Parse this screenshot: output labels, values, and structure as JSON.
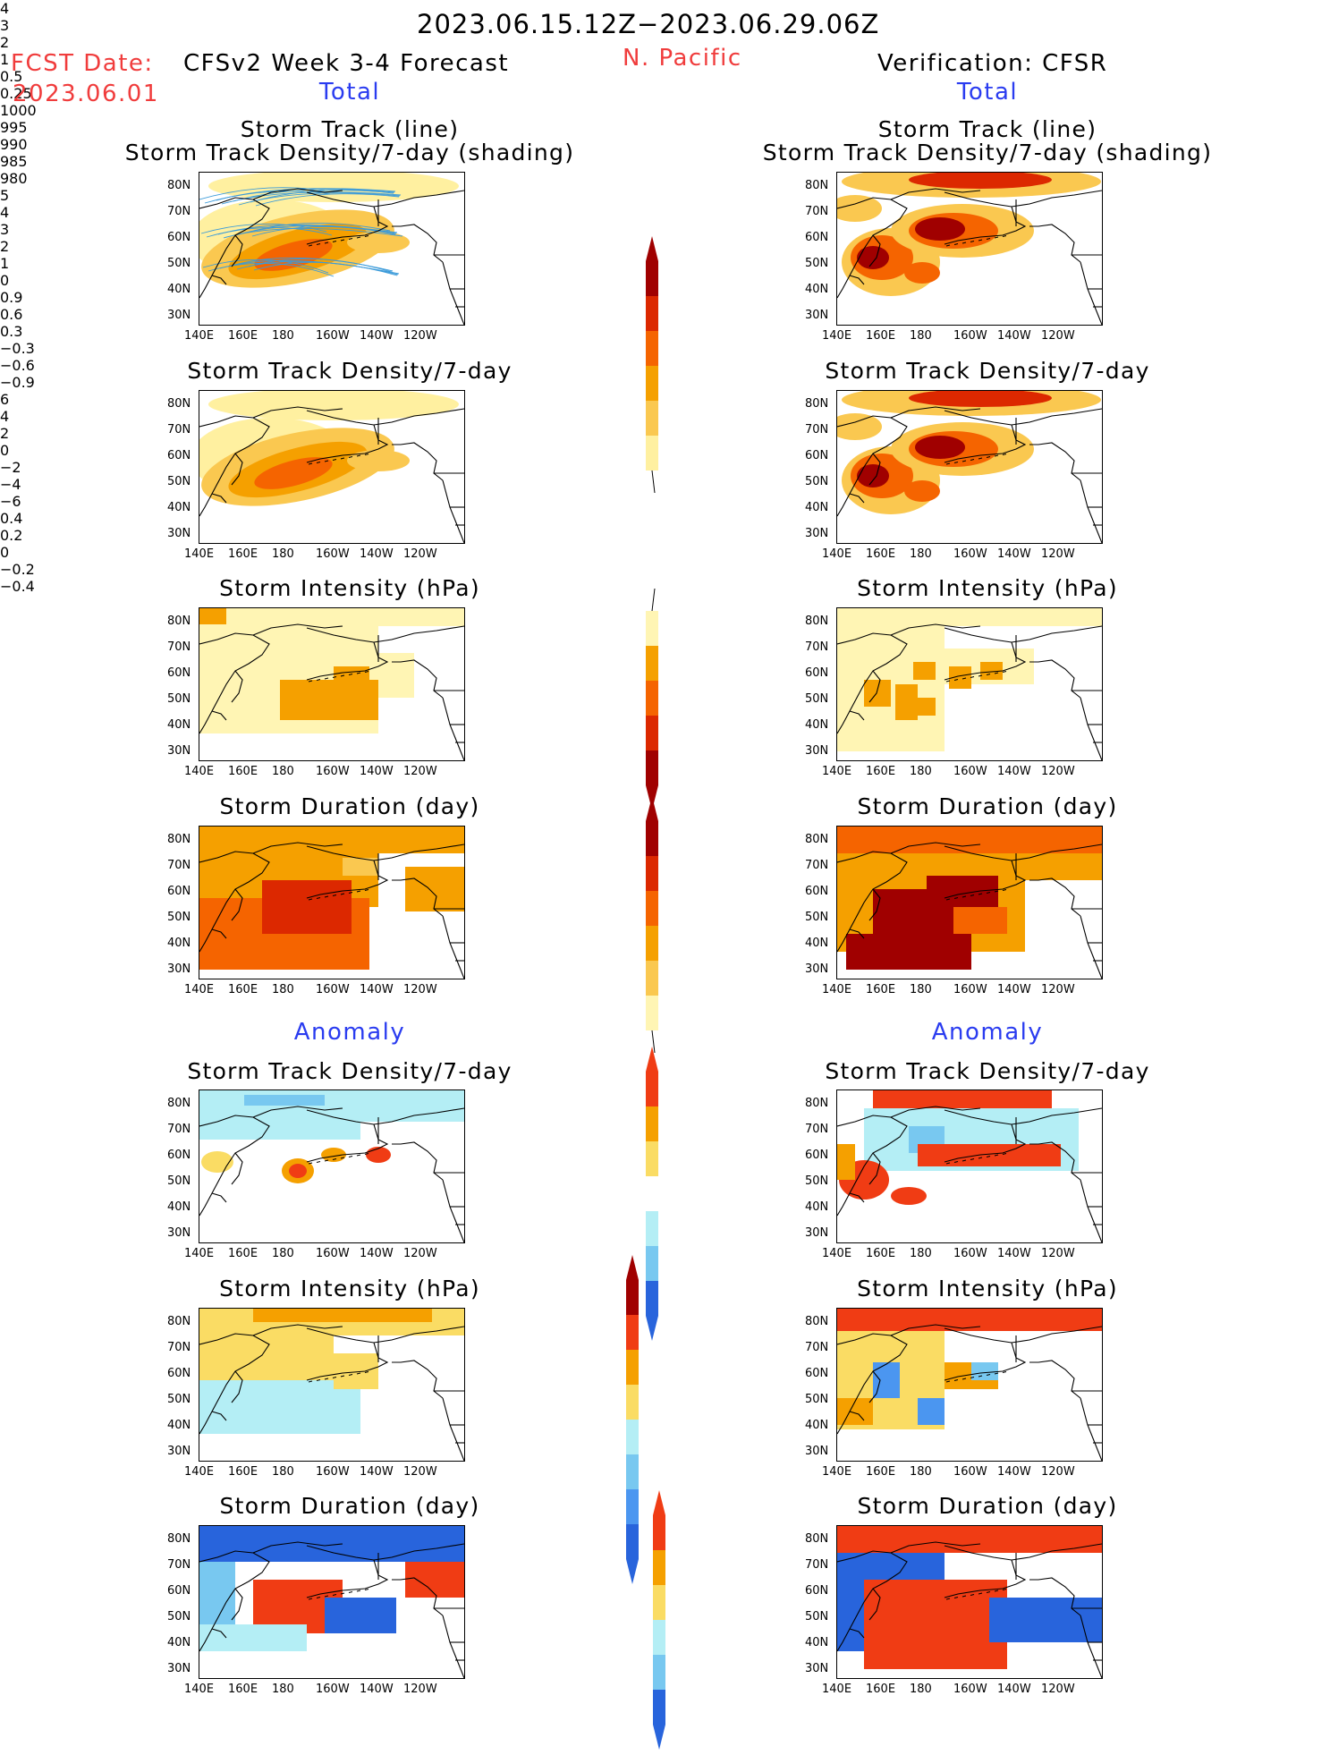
{
  "header": {
    "valid_period": "2023.06.15.12Z−2023.06.29.06Z",
    "fcst_label": "FCST Date:",
    "fcst_date": "2023.06.01",
    "model": "CFSv2 Week 3-4 Forecast",
    "region": "N. Pacific",
    "verification": "Verification: CFSR"
  },
  "sections": {
    "total": "Total",
    "anomaly": "Anomaly"
  },
  "axes": {
    "lat_ticks": [
      "80N",
      "70N",
      "60N",
      "50N",
      "40N",
      "30N"
    ],
    "lon_ticks": [
      "140E",
      "160E",
      "180",
      "160W",
      "140W",
      "120W"
    ]
  },
  "panel_titles": {
    "track_line": "Storm Track (line)",
    "track_shading": "Storm Track Density/7-day (shading)",
    "density": "Storm Track Density/7-day",
    "intensity": "Storm Intensity (hPa)",
    "duration": "Storm Duration (day)"
  },
  "colorbars": {
    "density_total": {
      "labels": [
        "4",
        "3",
        "2",
        "1",
        "0.5",
        "0.25"
      ],
      "colors": [
        "#a00000",
        "#dc2800",
        "#f56400",
        "#f5a000",
        "#fac850",
        "#fff0a0"
      ]
    },
    "intensity_total": {
      "labels": [
        "1000",
        "995",
        "990",
        "985",
        "980"
      ],
      "colors": [
        "#fff5b4",
        "#f5a000",
        "#f56400",
        "#dc2800",
        "#a00000"
      ]
    },
    "duration_total": {
      "labels": [
        "5",
        "4",
        "3",
        "2",
        "1",
        "0"
      ],
      "colors": [
        "#a00000",
        "#dc2800",
        "#f56400",
        "#f5a000",
        "#fac850",
        "#fff5b4"
      ]
    },
    "density_anom": {
      "labels": [
        "0.9",
        "0.6",
        "0.3",
        "−0.3",
        "−0.6",
        "−0.9"
      ],
      "colors": [
        "#f03c14",
        "#f5a000",
        "#fadc64",
        "#ffffff",
        "#b4eef5",
        "#78c8f0",
        "#2864dc"
      ]
    },
    "intensity_anom": {
      "labels": [
        "6",
        "4",
        "2",
        "0",
        "−2",
        "−4",
        "−6"
      ],
      "colors": [
        "#a00000",
        "#f03c14",
        "#f5a000",
        "#fadc64",
        "#b4eef5",
        "#78c8f0",
        "#4b96f0",
        "#2864dc"
      ]
    },
    "duration_anom": {
      "labels": [
        "0.4",
        "0.2",
        "0",
        "−0.2",
        "−0.4"
      ],
      "colors": [
        "#f03c14",
        "#f5a000",
        "#fadc64",
        "#b4eef5",
        "#78c8f0",
        "#2864dc"
      ]
    }
  }
}
